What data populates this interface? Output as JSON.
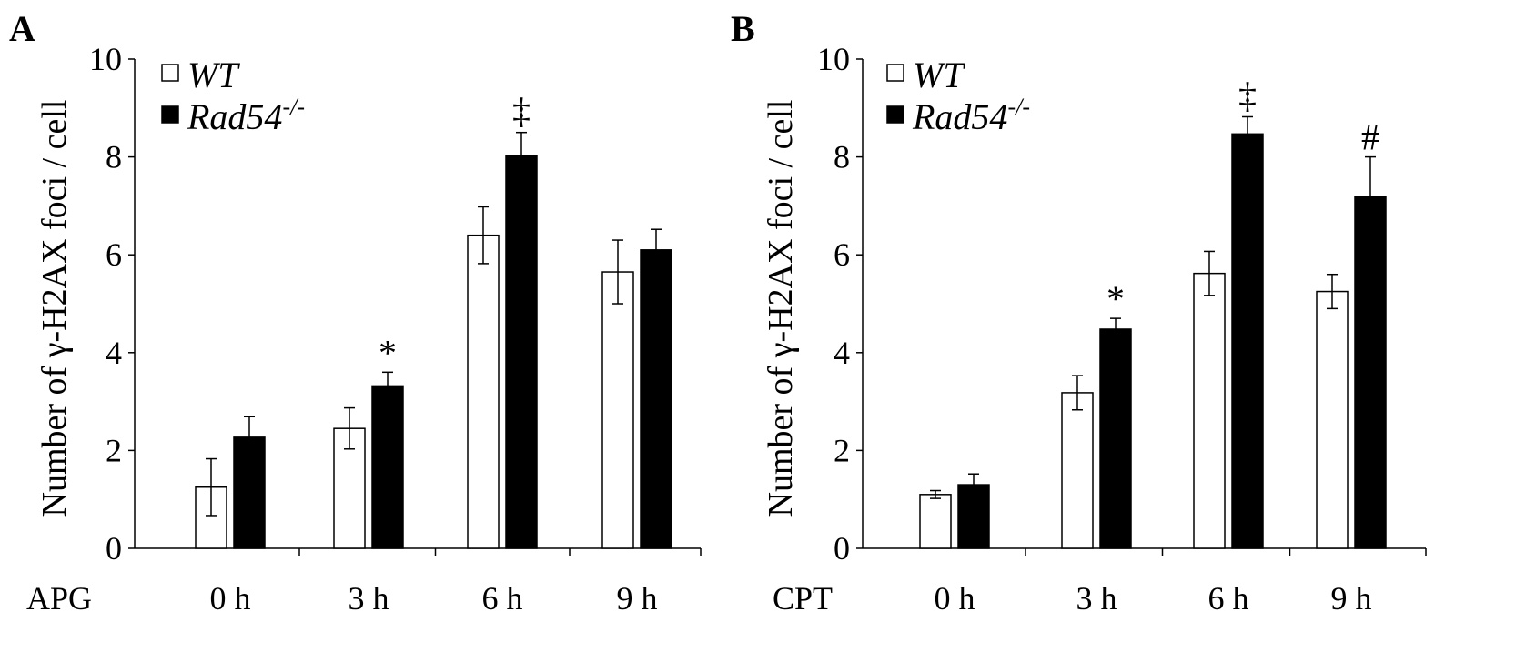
{
  "colors": {
    "wt_fill": "#ffffff",
    "rad54_fill": "#000000",
    "stroke": "#000000"
  },
  "legend": {
    "wt_label": "WT",
    "rad54_label": "Rad54",
    "rad54_superscript": "-/-"
  },
  "chart_data": [
    {
      "type": "bar",
      "panel_label": "A",
      "treatment_label": "APG",
      "ylabel": "Number of γ-H2AX foci / cell",
      "ylim": [
        0,
        10
      ],
      "yticks": [
        "0",
        "2",
        "4",
        "6",
        "8",
        "10"
      ],
      "categories": [
        "0 h",
        "3 h",
        "6 h",
        "9 h"
      ],
      "series": [
        {
          "name": "WT",
          "values": [
            1.25,
            2.45,
            6.4,
            5.65
          ],
          "errors": [
            0.58,
            0.42,
            0.58,
            0.65
          ]
        },
        {
          "name": "Rad54-/-",
          "values": [
            2.27,
            3.32,
            8.02,
            6.1
          ],
          "errors": [
            0.42,
            0.28,
            0.48,
            0.42
          ]
        }
      ],
      "annotations": [
        {
          "category_index": 1,
          "series_index": 1,
          "text": "*"
        },
        {
          "category_index": 2,
          "series_index": 1,
          "text": "‡"
        }
      ]
    },
    {
      "type": "bar",
      "panel_label": "B",
      "treatment_label": "CPT",
      "ylabel": "Number of γ-H2AX foci / cell",
      "ylim": [
        0,
        10
      ],
      "yticks": [
        "0",
        "2",
        "4",
        "6",
        "8",
        "10"
      ],
      "categories": [
        "0 h",
        "3 h",
        "6 h",
        "9 h"
      ],
      "series": [
        {
          "name": "WT",
          "values": [
            1.1,
            3.18,
            5.62,
            5.25
          ],
          "errors": [
            0.08,
            0.35,
            0.45,
            0.35
          ]
        },
        {
          "name": "Rad54-/-",
          "values": [
            1.3,
            4.48,
            8.47,
            7.18
          ],
          "errors": [
            0.22,
            0.22,
            0.35,
            0.82
          ]
        }
      ],
      "annotations": [
        {
          "category_index": 1,
          "series_index": 1,
          "text": "*"
        },
        {
          "category_index": 2,
          "series_index": 1,
          "text": "‡"
        },
        {
          "category_index": 3,
          "series_index": 1,
          "text": "#"
        }
      ]
    }
  ]
}
